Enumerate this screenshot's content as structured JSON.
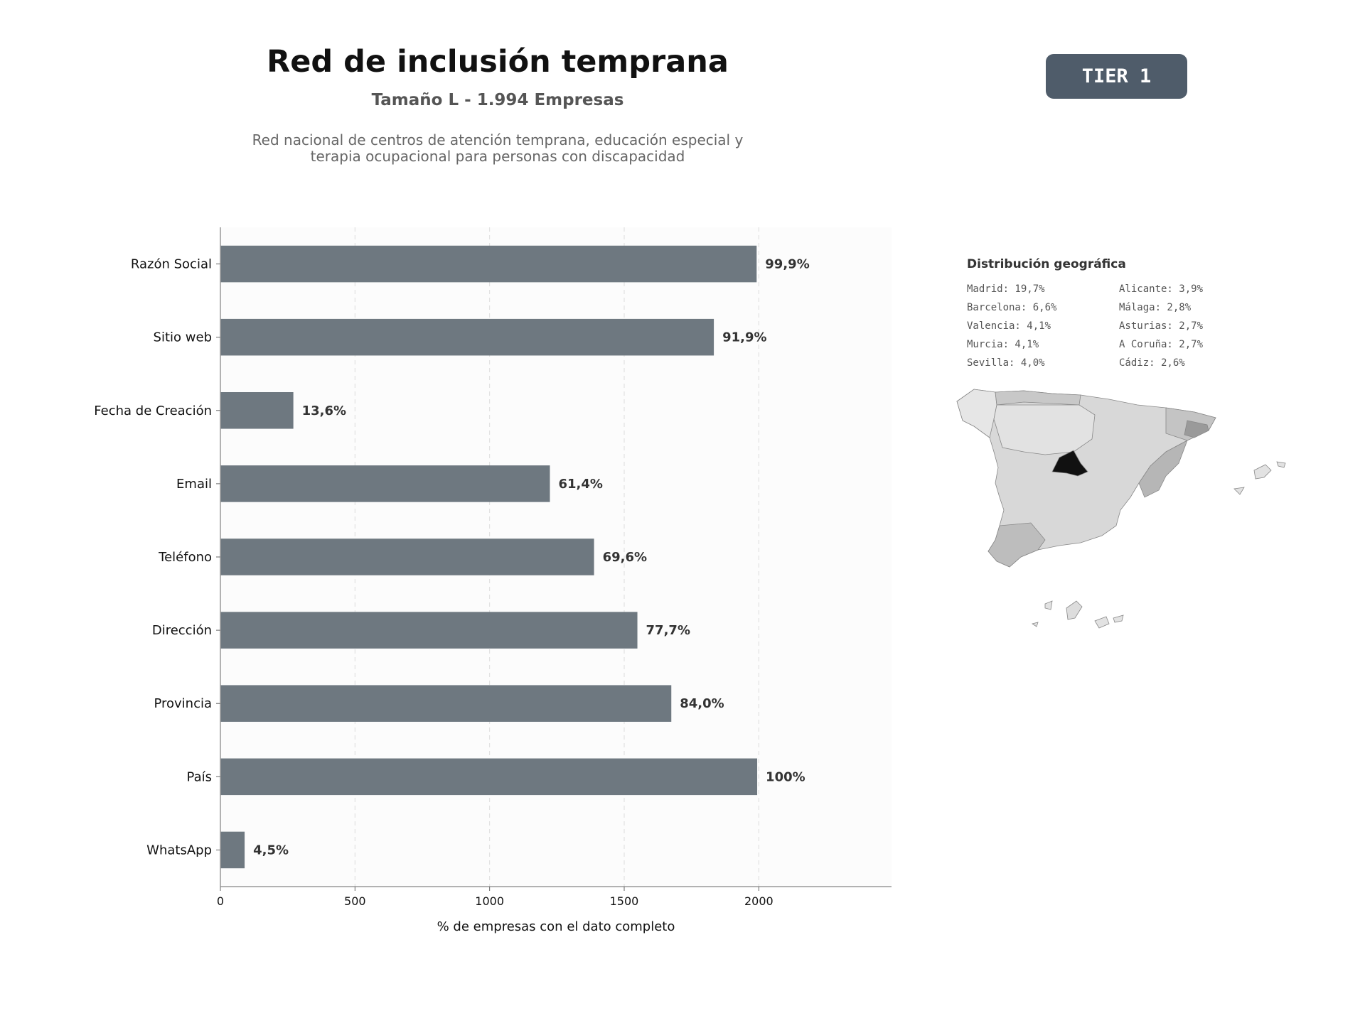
{
  "header": {
    "title": "Red de inclusión temprana",
    "subtitle": "Tamaño L - 1.994 Empresas",
    "description_line1": "Red nacional de centros de atención temprana, educación especial y",
    "description_line2": "terapia ocupacional para personas con discapacidad",
    "tier_badge": "TIER 1"
  },
  "chart_data": {
    "type": "bar",
    "orientation": "horizontal",
    "categories": [
      "Razón Social",
      "Sitio web",
      "Fecha de Creación",
      "Email",
      "Teléfono",
      "Dirección",
      "Provincia",
      "País",
      "WhatsApp"
    ],
    "values": [
      1992,
      1833,
      271,
      1224,
      1388,
      1549,
      1675,
      1994,
      90
    ],
    "value_labels": [
      "99,9%",
      "91,9%",
      "13,6%",
      "61,4%",
      "69,6%",
      "77,7%",
      "84,0%",
      "100%",
      "4,5%"
    ],
    "xlabel": "% de empresas con el dato completo",
    "xlim": [
      0,
      2493
    ],
    "xticks": [
      0,
      500,
      1000,
      1500,
      2000
    ],
    "grid": "vertical dashed",
    "colors": {
      "bar": "#6e7880",
      "plot_bg": "#fcfcfc",
      "label": "#333333"
    }
  },
  "geo": {
    "title": "Distribución geográfica",
    "col1": [
      "Madrid: 19,7%",
      "Barcelona: 6,6%",
      "Valencia: 4,1%",
      "Murcia: 4,1%",
      "Sevilla: 4,0%"
    ],
    "col2": [
      "Alicante: 3,9%",
      "Málaga: 2,8%",
      "Asturias: 2,7%",
      "A Coruña: 2,7%",
      "Cádiz: 2,6%"
    ]
  }
}
